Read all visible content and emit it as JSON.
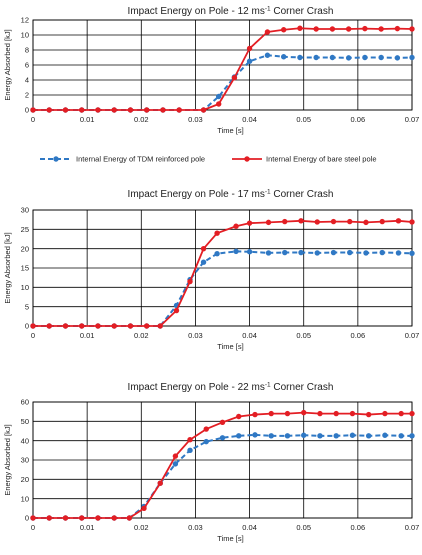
{
  "colors": {
    "tdm": "#2f78c4",
    "bare": "#e31e24"
  },
  "legend": {
    "tdm": "Internal Energy of TDM reinforced pole",
    "bare": "Internal Energy of bare steel pole"
  },
  "chart_data": [
    {
      "type": "line",
      "title_pre": "Impact Energy on Pole - 12 ms",
      "title_sup": "-1",
      "title_post": " Corner Crash",
      "xlabel": "Time [s]",
      "ylabel": "Energy Absorbed [kJ]",
      "xlim": [
        0,
        0.07
      ],
      "ylim": [
        0,
        12
      ],
      "xticks": [
        "0",
        "0.01",
        "0.02",
        "0.03",
        "0.04",
        "0.05",
        "0.06",
        "0.07"
      ],
      "yticks": [
        "0",
        "2",
        "4",
        "6",
        "8",
        "10",
        "12"
      ],
      "grid": true,
      "series": [
        {
          "key": "tdm",
          "x": [
            0,
            0.003,
            0.006,
            0.009,
            0.012,
            0.015,
            0.018,
            0.021,
            0.024,
            0.027,
            0.0315,
            0.0343,
            0.0372,
            0.04,
            0.0433,
            0.0463,
            0.0493,
            0.0523,
            0.0553,
            0.0583,
            0.0613,
            0.0643,
            0.0673,
            0.07
          ],
          "y": [
            0,
            0,
            0,
            0,
            0,
            0,
            0,
            0,
            0,
            0,
            0,
            1.8,
            4.4,
            6.5,
            7.3,
            7.1,
            7.0,
            7.0,
            7.0,
            6.95,
            7.0,
            7.0,
            6.95,
            7.0
          ]
        },
        {
          "key": "bare",
          "x": [
            0,
            0.003,
            0.006,
            0.009,
            0.012,
            0.015,
            0.018,
            0.021,
            0.024,
            0.027,
            0.0315,
            0.0343,
            0.0372,
            0.04,
            0.0433,
            0.0463,
            0.0493,
            0.0523,
            0.0553,
            0.0583,
            0.0613,
            0.0643,
            0.0673,
            0.07
          ],
          "y": [
            0,
            0,
            0,
            0,
            0,
            0,
            0,
            0,
            0,
            0,
            0,
            0.8,
            4.3,
            8.2,
            10.4,
            10.7,
            10.9,
            10.8,
            10.8,
            10.8,
            10.85,
            10.8,
            10.85,
            10.8
          ]
        }
      ]
    },
    {
      "type": "line",
      "title_pre": "Impact Energy on Pole - 17 ms",
      "title_sup": "-1",
      "title_post": " Corner Crash",
      "xlabel": "Time [s]",
      "ylabel": "Energy Absorbed [kJ]",
      "xlim": [
        0,
        0.07
      ],
      "ylim": [
        0,
        30
      ],
      "xticks": [
        "0",
        "0.01",
        "0.02",
        "0.03",
        "0.04",
        "0.05",
        "0.06",
        "0.07"
      ],
      "yticks": [
        "0",
        "5",
        "10",
        "15",
        "20",
        "25",
        "30"
      ],
      "grid": true,
      "series": [
        {
          "key": "tdm",
          "x": [
            0,
            0.003,
            0.006,
            0.009,
            0.012,
            0.015,
            0.018,
            0.021,
            0.0235,
            0.0265,
            0.029,
            0.0315,
            0.034,
            0.0375,
            0.04,
            0.0435,
            0.0465,
            0.0495,
            0.0525,
            0.0555,
            0.0585,
            0.0615,
            0.0645,
            0.0675,
            0.07
          ],
          "y": [
            0,
            0,
            0,
            0,
            0,
            0,
            0,
            0,
            0,
            5.3,
            12.0,
            16.5,
            18.7,
            19.3,
            19.2,
            18.9,
            19.0,
            19.0,
            18.9,
            19.0,
            19.0,
            18.9,
            19.0,
            18.9,
            18.8
          ]
        },
        {
          "key": "bare",
          "x": [
            0,
            0.003,
            0.006,
            0.009,
            0.012,
            0.015,
            0.018,
            0.021,
            0.0235,
            0.0265,
            0.029,
            0.0315,
            0.034,
            0.0375,
            0.04,
            0.0435,
            0.0465,
            0.0495,
            0.0525,
            0.0555,
            0.0585,
            0.0615,
            0.0645,
            0.0675,
            0.07
          ],
          "y": [
            0,
            0,
            0,
            0,
            0,
            0,
            0,
            0,
            0,
            4.0,
            11.5,
            20.0,
            24.0,
            25.8,
            26.6,
            26.8,
            27.0,
            27.2,
            26.9,
            27.0,
            27.0,
            26.8,
            27.0,
            27.2,
            26.9
          ]
        }
      ]
    },
    {
      "type": "line",
      "title_pre": "Impact Energy on Pole - 22 ms",
      "title_sup": "-1",
      "title_post": " Corner Crash",
      "xlabel": "Time [s]",
      "ylabel": "Energy Absorbed [kJ]",
      "xlim": [
        0,
        0.07
      ],
      "ylim": [
        0,
        60
      ],
      "xticks": [
        "0",
        "0.01",
        "0.02",
        "0.03",
        "0.04",
        "0.05",
        "0.06",
        "0.07"
      ],
      "yticks": [
        "0",
        "10",
        "20",
        "30",
        "40",
        "50",
        "60"
      ],
      "grid": true,
      "series": [
        {
          "key": "tdm",
          "x": [
            0,
            0.003,
            0.006,
            0.009,
            0.012,
            0.015,
            0.0178,
            0.0205,
            0.0235,
            0.0263,
            0.029,
            0.032,
            0.035,
            0.038,
            0.041,
            0.044,
            0.047,
            0.05,
            0.053,
            0.056,
            0.059,
            0.062,
            0.065,
            0.068,
            0.07
          ],
          "y": [
            0,
            0,
            0,
            0,
            0,
            0,
            0,
            6.0,
            18.0,
            28.0,
            35.0,
            39.5,
            41.5,
            42.5,
            43.0,
            42.5,
            42.5,
            42.8,
            42.5,
            42.5,
            42.8,
            42.5,
            42.8,
            42.5,
            42.5
          ]
        },
        {
          "key": "bare",
          "x": [
            0,
            0.003,
            0.006,
            0.009,
            0.012,
            0.015,
            0.0178,
            0.0205,
            0.0235,
            0.0263,
            0.029,
            0.032,
            0.035,
            0.038,
            0.041,
            0.044,
            0.047,
            0.05,
            0.053,
            0.056,
            0.059,
            0.062,
            0.065,
            0.068,
            0.07
          ],
          "y": [
            0,
            0,
            0,
            0,
            0,
            0,
            0,
            5.0,
            18.0,
            32.0,
            40.5,
            46.0,
            49.5,
            52.5,
            53.5,
            54.0,
            54.0,
            54.5,
            54.0,
            54.0,
            54.0,
            53.5,
            54.0,
            54.0,
            54.0
          ]
        }
      ]
    }
  ]
}
